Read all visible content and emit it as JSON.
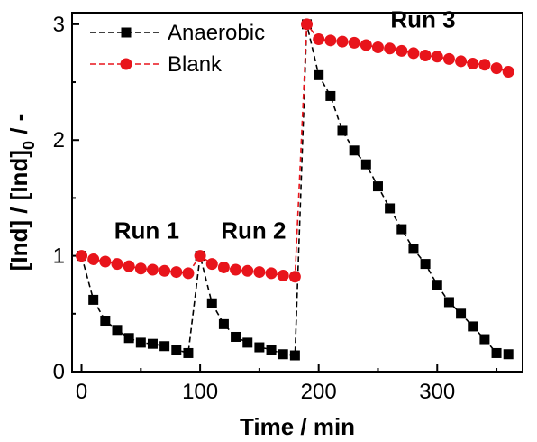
{
  "chart_data": {
    "type": "line",
    "xlabel": "Time / min",
    "ylabel_main": "[Ind] / [Ind]",
    "ylabel_sub": "0",
    "ylabel_tail": " / -",
    "xlim": [
      -8,
      372
    ],
    "ylim": [
      0,
      3.1
    ],
    "xticks": [
      0,
      100,
      200,
      300
    ],
    "yticks": [
      0,
      1,
      2,
      3
    ],
    "grid": false,
    "legend_position": "top-left",
    "series": [
      {
        "name": "Anaerobic",
        "color": "#000000",
        "marker": "square",
        "x": [
          0,
          10,
          20,
          30,
          40,
          50,
          60,
          70,
          80,
          90,
          100,
          110,
          120,
          130,
          140,
          150,
          160,
          170,
          180,
          190,
          200,
          210,
          220,
          230,
          240,
          250,
          260,
          270,
          280,
          290,
          300,
          310,
          320,
          330,
          340,
          350,
          360
        ],
        "y": [
          1.0,
          0.62,
          0.44,
          0.36,
          0.29,
          0.25,
          0.24,
          0.22,
          0.19,
          0.16,
          1.0,
          0.59,
          0.41,
          0.3,
          0.25,
          0.21,
          0.19,
          0.15,
          0.14,
          3.0,
          2.56,
          2.38,
          2.08,
          1.91,
          1.79,
          1.6,
          1.41,
          1.23,
          1.06,
          0.93,
          0.75,
          0.6,
          0.5,
          0.39,
          0.28,
          0.16,
          0.15
        ]
      },
      {
        "name": "Blank",
        "color": "#e8141b",
        "marker": "circle",
        "x": [
          0,
          10,
          20,
          30,
          40,
          50,
          60,
          70,
          80,
          90,
          100,
          110,
          120,
          130,
          140,
          150,
          160,
          170,
          180,
          190,
          200,
          210,
          220,
          230,
          240,
          250,
          260,
          270,
          280,
          290,
          300,
          310,
          320,
          330,
          340,
          350,
          360
        ],
        "y": [
          1.0,
          0.97,
          0.95,
          0.93,
          0.91,
          0.89,
          0.88,
          0.87,
          0.86,
          0.85,
          1.0,
          0.93,
          0.9,
          0.88,
          0.87,
          0.86,
          0.85,
          0.83,
          0.82,
          3.0,
          2.87,
          2.86,
          2.85,
          2.84,
          2.82,
          2.8,
          2.79,
          2.77,
          2.75,
          2.73,
          2.72,
          2.7,
          2.68,
          2.66,
          2.65,
          2.62,
          2.59
        ]
      }
    ],
    "annotations": [
      {
        "text": "Run 1",
        "x": 55,
        "y": 1.15
      },
      {
        "text": "Run 2",
        "x": 145,
        "y": 1.15
      },
      {
        "text": "Run 3",
        "x": 288,
        "y": 2.97
      }
    ]
  }
}
